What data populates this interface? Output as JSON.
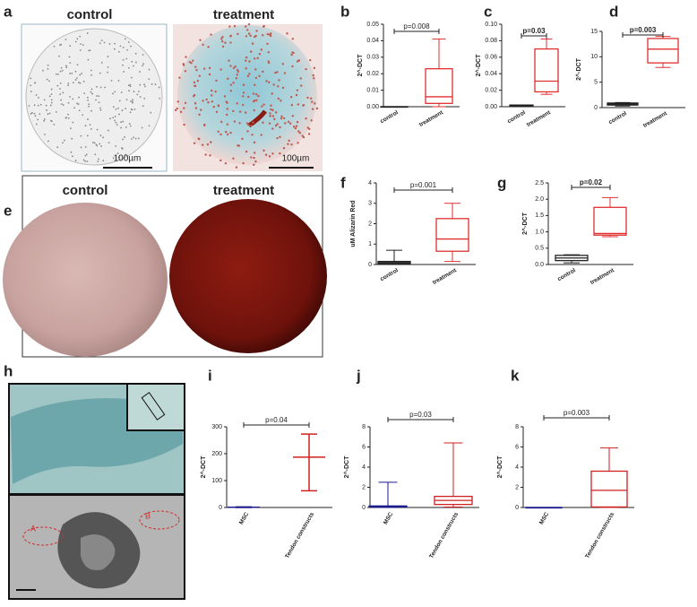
{
  "photos": {
    "a": {
      "letter": "a",
      "labels": [
        "control",
        "treatment"
      ],
      "scale_bars": [
        "100µm",
        "100µm"
      ]
    },
    "e": {
      "letter": "e",
      "labels": [
        "control",
        "treatment"
      ]
    },
    "h": {
      "letter": "h",
      "markers": [
        "A",
        "B"
      ]
    }
  },
  "chart_data": [
    {
      "type": "box",
      "panel": "b",
      "ylabel": "2^-DCT",
      "p_label": "p=0.008",
      "p_bold": false,
      "categories": [
        "control",
        "treatment"
      ],
      "boxes": [
        {
          "color": "#222222",
          "min": 0,
          "q1": 0,
          "median": 0,
          "q3": 0,
          "max": 0
        },
        {
          "color": "#e03030",
          "min": 0,
          "q1": 0.002,
          "median": 0.006,
          "q3": 0.023,
          "max": 0.041
        }
      ],
      "ylim": [
        0,
        0.05
      ],
      "yticks": [
        {
          "value": 0,
          "label": "0.00"
        },
        {
          "value": 0.01,
          "label": "0.01"
        },
        {
          "value": 0.02,
          "label": "0.02"
        },
        {
          "value": 0.03,
          "label": "0.03"
        },
        {
          "value": 0.04,
          "label": "0.04"
        },
        {
          "value": 0.05,
          "label": "0.05"
        }
      ]
    },
    {
      "type": "box",
      "panel": "c",
      "ylabel": "2^-DCT",
      "p_label": "p=0.03",
      "p_bold": true,
      "categories": [
        "control",
        "treatment"
      ],
      "boxes": [
        {
          "color": "#222222",
          "min": 0,
          "q1": 0.001,
          "median": 0.001,
          "q3": 0.002,
          "max": 0.002
        },
        {
          "color": "#e03030",
          "min": 0.015,
          "q1": 0.018,
          "median": 0.031,
          "q3": 0.07,
          "max": 0.082
        }
      ],
      "ylim": [
        0,
        0.1
      ],
      "yticks": [
        {
          "value": 0,
          "label": "0.00"
        },
        {
          "value": 0.02,
          "label": "0.02"
        },
        {
          "value": 0.04,
          "label": "0.04"
        },
        {
          "value": 0.06,
          "label": "0.06"
        },
        {
          "value": 0.08,
          "label": "0.08"
        },
        {
          "value": 0.1,
          "label": "0.10"
        }
      ]
    },
    {
      "type": "box",
      "panel": "d",
      "ylabel": "2^-DCT",
      "p_label": "p=0.003",
      "p_bold": true,
      "categories": [
        "control",
        "treatment"
      ],
      "boxes": [
        {
          "color": "#222222",
          "min": 0.3,
          "q1": 0.5,
          "median": 0.7,
          "q3": 0.9,
          "max": 1.0
        },
        {
          "color": "#e03030",
          "min": 7.9,
          "q1": 8.8,
          "median": 11.5,
          "q3": 13.6,
          "max": 14
        }
      ],
      "ylim": [
        0,
        15
      ],
      "yticks": [
        0,
        5,
        10,
        15
      ]
    },
    {
      "type": "box",
      "panel": "f",
      "ylabel": "uM Alizarin Red",
      "p_label": "p=0.001",
      "p_bold": false,
      "categories": [
        "control",
        "treatment"
      ],
      "boxes": [
        {
          "color": "#222222",
          "min": 0,
          "q1": 0.05,
          "median": 0.1,
          "q3": 0.15,
          "max": 0.7
        },
        {
          "color": "#e03030",
          "min": 0.15,
          "q1": 0.65,
          "median": 1.25,
          "q3": 2.25,
          "max": 3.0
        }
      ],
      "ylim": [
        0,
        4
      ],
      "yticks": [
        0,
        1,
        2,
        3,
        4
      ]
    },
    {
      "type": "box",
      "panel": "g",
      "ylabel": "2^-DCT",
      "p_label": "p=0.02",
      "p_bold": true,
      "categories": [
        "control",
        "treatment"
      ],
      "boxes": [
        {
          "color": "#222222",
          "min": 0.05,
          "q1": 0.12,
          "median": 0.2,
          "q3": 0.28,
          "max": 0.3
        },
        {
          "color": "#e03030",
          "min": 0.85,
          "q1": 0.9,
          "median": 0.95,
          "q3": 1.75,
          "max": 2.05
        }
      ],
      "ylim": [
        0,
        2.5
      ],
      "yticks": [
        {
          "value": 0,
          "label": "0.0"
        },
        {
          "value": 0.5,
          "label": "0.5"
        },
        {
          "value": 1,
          "label": "1.0"
        },
        {
          "value": 1.5,
          "label": "1.5"
        },
        {
          "value": 2,
          "label": "2.0"
        },
        {
          "value": 2.5,
          "label": "2.5"
        }
      ]
    },
    {
      "type": "range",
      "panel": "i",
      "ylabel": "2^-DCT",
      "p_label": "p=0.04",
      "p_bold": false,
      "categories": [
        "MSC",
        "Tendon constructs"
      ],
      "boxes": [
        {
          "color": "#1a1a8c",
          "min": 0,
          "median": 1,
          "max": 2
        },
        {
          "color": "#d02020",
          "min": 62,
          "median": 187,
          "max": 273
        }
      ],
      "ylim": [
        0,
        300
      ],
      "yticks": [
        0,
        100,
        200,
        300
      ]
    },
    {
      "type": "box",
      "panel": "j",
      "ylabel": "2^-DCT",
      "p_label": "p=0.03",
      "p_bold": false,
      "categories": [
        "MSC",
        "Tendon constructs"
      ],
      "boxes": [
        {
          "color": "#1a1a8c",
          "min": 0,
          "q1": 0.05,
          "median": 0.1,
          "q3": 0.15,
          "max": 2.5
        },
        {
          "color": "#d02020",
          "min": 0.05,
          "q1": 0.3,
          "median": 0.7,
          "q3": 1.1,
          "max": 6.4
        }
      ],
      "ylim": [
        0,
        8
      ],
      "yticks": [
        0,
        2,
        4,
        6,
        8
      ]
    },
    {
      "type": "box",
      "panel": "k",
      "ylabel": "2^-DCT",
      "p_label": "p=0.003",
      "p_bold": false,
      "categories": [
        "MSC",
        "Tendon constructs"
      ],
      "boxes": [
        {
          "color": "#1a1a8c",
          "min": 0,
          "q1": 0,
          "median": 0,
          "q3": 0,
          "max": 0
        },
        {
          "color": "#d02020",
          "min": 0,
          "q1": 0.05,
          "median": 1.7,
          "q3": 3.6,
          "max": 5.9
        }
      ],
      "ylim": [
        0,
        8
      ],
      "yticks": [
        0,
        2,
        4,
        6,
        8
      ]
    }
  ]
}
